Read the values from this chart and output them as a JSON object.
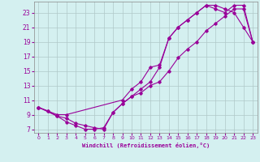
{
  "xlabel": "Windchill (Refroidissement éolien,°C)",
  "line_color": "#990099",
  "bg_color": "#d4f0f0",
  "grid_color": "#b0c8c8",
  "xlim": [
    -0.5,
    23.5
  ],
  "ylim": [
    6.5,
    24.5
  ],
  "xticks": [
    0,
    1,
    2,
    3,
    4,
    5,
    6,
    7,
    8,
    9,
    10,
    11,
    12,
    13,
    14,
    15,
    16,
    17,
    18,
    19,
    20,
    21,
    22,
    23
  ],
  "yticks": [
    7,
    9,
    11,
    13,
    15,
    17,
    19,
    21,
    23
  ],
  "series": [
    {
      "x": [
        0,
        1,
        2,
        3,
        4,
        5,
        6,
        7,
        8,
        9,
        10,
        11,
        12,
        13,
        14,
        15,
        16,
        17,
        18,
        19,
        20,
        21,
        22,
        23
      ],
      "y": [
        10,
        9.5,
        8.8,
        8.5,
        7.8,
        7.5,
        7.2,
        7.0,
        9.3,
        10.5,
        11.5,
        12.0,
        13.0,
        13.5,
        15.0,
        16.8,
        18.0,
        19.0,
        20.5,
        21.5,
        22.5,
        23.5,
        23.5,
        19.0
      ]
    },
    {
      "x": [
        0,
        1,
        2,
        3,
        9,
        10,
        11,
        12,
        13,
        14,
        15,
        16,
        17,
        18,
        19,
        20,
        21,
        22,
        23
      ],
      "y": [
        10,
        9.5,
        9.0,
        9.0,
        11.0,
        12.5,
        13.5,
        15.5,
        15.8,
        19.5,
        21.0,
        22.0,
        23.0,
        24.0,
        24.0,
        23.5,
        23.0,
        21.0,
        19.0
      ]
    },
    {
      "x": [
        0,
        2,
        3,
        4,
        5,
        6,
        7,
        8,
        9,
        10,
        11,
        12,
        13,
        14,
        15,
        16,
        17,
        18,
        19,
        20,
        21,
        22,
        23
      ],
      "y": [
        10,
        8.8,
        8.0,
        7.5,
        7.0,
        7.0,
        7.2,
        9.3,
        10.5,
        11.5,
        12.5,
        13.5,
        15.5,
        19.5,
        21.0,
        22.0,
        23.0,
        24.0,
        23.5,
        23.0,
        24.0,
        24.0,
        19.0
      ]
    }
  ]
}
